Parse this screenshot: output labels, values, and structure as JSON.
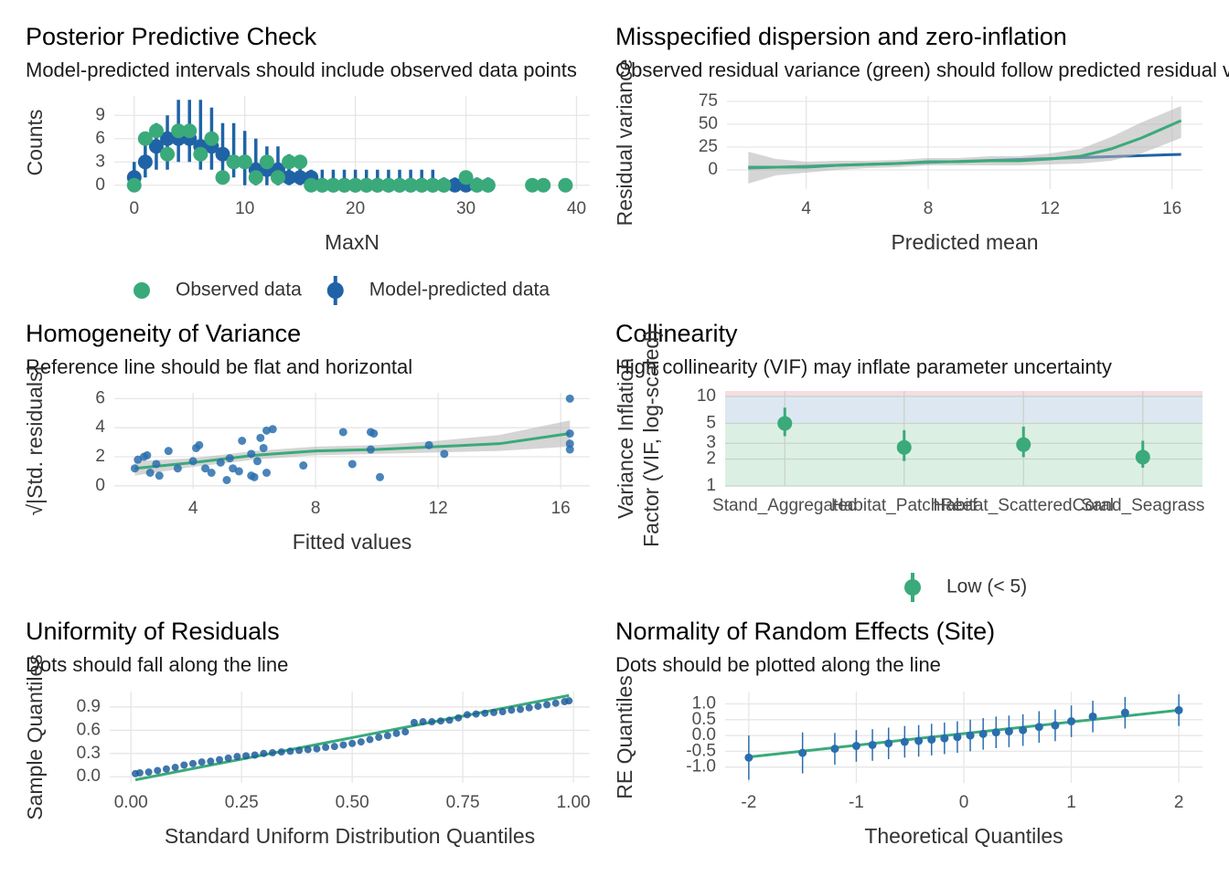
{
  "chart_data": [
    {
      "type": "pointrange",
      "title": "Posterior Predictive Check",
      "subtitle": "Model-predicted intervals should include observed data points",
      "xlabel": "MaxN",
      "ylabel": "Counts",
      "xlim": [
        -1.8,
        41.2
      ],
      "xticks": [
        0,
        10,
        20,
        30,
        40
      ],
      "ylim": [
        -0.5,
        11.5
      ],
      "yticks": [
        0,
        3,
        6,
        9
      ],
      "grid": true,
      "series": [
        {
          "name": "Observed data",
          "color": "#3aaa7a",
          "style": "points",
          "x": [
            0,
            1,
            2,
            3,
            4,
            5,
            6,
            7,
            8,
            9,
            10,
            11,
            12,
            13,
            14,
            15,
            16,
            17,
            18,
            19,
            20,
            21,
            22,
            23,
            24,
            25,
            26,
            27,
            28,
            30,
            31,
            32,
            36,
            37,
            39
          ],
          "values": [
            0,
            6,
            7,
            4,
            7,
            7,
            4,
            6,
            1,
            3,
            3,
            1,
            3,
            1,
            3,
            3,
            0,
            0,
            0,
            0,
            0,
            0,
            0,
            0,
            0,
            0,
            0,
            0,
            0,
            1,
            0,
            0,
            0,
            0,
            0
          ]
        },
        {
          "name": "Model-predicted data",
          "color": "#1f63a6",
          "style": "points",
          "x": [
            0,
            1,
            2,
            3,
            4,
            5,
            6,
            7,
            8,
            9,
            10,
            11,
            12,
            13,
            14,
            15,
            16,
            17,
            18,
            19,
            20,
            21,
            22,
            23,
            24,
            25,
            26,
            27,
            28,
            29,
            30,
            31,
            32
          ],
          "values": [
            1,
            3,
            5,
            6,
            6,
            6,
            5,
            5,
            4,
            3,
            3,
            2,
            2,
            2,
            1,
            1,
            1,
            0,
            0,
            0,
            0,
            0,
            0,
            0,
            0,
            0,
            0,
            0,
            0,
            0,
            0,
            0,
            0
          ],
          "lower": [
            0,
            1,
            2,
            2,
            3,
            3,
            2,
            2,
            1,
            1,
            0,
            0,
            0,
            0,
            0,
            0,
            0,
            0,
            0,
            0,
            0,
            0,
            0,
            0,
            0,
            0,
            0,
            0,
            0,
            0,
            0,
            0,
            0
          ],
          "upper": [
            3,
            6,
            8,
            9,
            11,
            11,
            11,
            10,
            8,
            8,
            7,
            6,
            5,
            5,
            4,
            3,
            2,
            2,
            2,
            2,
            2,
            2,
            2,
            2,
            2,
            2,
            2,
            2,
            1,
            1,
            1,
            1,
            1
          ]
        }
      ]
    },
    {
      "type": "line",
      "title": "Misspecified dispersion and zero-inflation",
      "subtitle": "Observed residual variance (green) should follow predicted residual variance (blue)",
      "xlabel": "Predicted mean",
      "ylabel": "Residual variance",
      "xlim": [
        1.4,
        17
      ],
      "xticks": [
        4,
        8,
        12,
        16
      ],
      "ylim": [
        -21,
        81
      ],
      "yticks": [
        0,
        25,
        50,
        75
      ],
      "grid": true,
      "series": [
        {
          "color": "#3aaa7a",
          "style": "line",
          "x": [
            2.1,
            3,
            4,
            5,
            6,
            7,
            8,
            9,
            10,
            11,
            12,
            13,
            14,
            15,
            16.3
          ],
          "values": [
            3,
            3,
            3,
            5,
            6,
            7,
            9,
            9,
            10,
            10,
            12,
            15,
            23,
            35,
            54
          ],
          "lower": [
            -15,
            -6,
            -3,
            0,
            2,
            3,
            5,
            5,
            5,
            5,
            6,
            7,
            10,
            18,
            35
          ],
          "upper": [
            20,
            12,
            9,
            10,
            10,
            11,
            13,
            13,
            15,
            15,
            18,
            23,
            36,
            52,
            70
          ]
        },
        {
          "color": "#1f63a6",
          "style": "line",
          "x": [
            2.1,
            16.3
          ],
          "values": [
            2,
            17
          ]
        }
      ]
    },
    {
      "type": "scatter",
      "title": "Homogeneity of Variance",
      "subtitle": "Reference line should be flat and horizontal",
      "xlabel": "Fitted values",
      "ylabel": "√|Std. residuals|",
      "xlim": [
        1.43,
        16.95
      ],
      "xticks": [
        4,
        8,
        12,
        16
      ],
      "ylim": [
        -0.2,
        6.4
      ],
      "yticks": [
        0,
        2,
        4,
        6
      ],
      "grid": true,
      "series": [
        {
          "color": "#2a6ead",
          "style": "points",
          "x": [
            2.1,
            2.2,
            2.4,
            2.5,
            2.6,
            2.8,
            3.2,
            2.9,
            3.5,
            4.0,
            4.1,
            4.2,
            4.4,
            4.6,
            4.9,
            5.1,
            5.2,
            5.6,
            5.3,
            5.5,
            5.9,
            5.9,
            6.1,
            6.2,
            6.3,
            6.4,
            6.6,
            6.4,
            6.0,
            7.6,
            8.9,
            9.2,
            9.8,
            9.9,
            9.8,
            10.1,
            11.7,
            12.2,
            16.3,
            16.3,
            16.3,
            16.3
          ],
          "values": [
            1.2,
            1.8,
            2.0,
            2.1,
            0.9,
            1.5,
            2.4,
            0.7,
            1.2,
            1.7,
            2.6,
            2.8,
            1.2,
            0.9,
            1.6,
            0.4,
            1.9,
            3.1,
            1.2,
            1.0,
            0.7,
            2.2,
            1.7,
            3.3,
            2.6,
            3.8,
            3.9,
            0.9,
            0.6,
            1.4,
            3.7,
            1.5,
            3.7,
            3.6,
            2.5,
            0.6,
            2.8,
            2.2,
            6.0,
            3.6,
            2.9,
            2.5
          ]
        },
        {
          "color": "#3aaa7a",
          "style": "line",
          "x": [
            2.1,
            4,
            6,
            8,
            10,
            12,
            14,
            16.3
          ],
          "values": [
            1.2,
            1.6,
            2.1,
            2.4,
            2.5,
            2.7,
            2.9,
            3.6
          ],
          "lower": [
            0.7,
            1.3,
            1.8,
            2.1,
            2.2,
            2.3,
            2.4,
            2.7
          ],
          "upper": [
            1.7,
            1.9,
            2.4,
            2.7,
            2.8,
            3.1,
            3.5,
            4.5
          ]
        }
      ]
    },
    {
      "type": "pointrange",
      "title": "Collinearity",
      "subtitle": "High collinearity (VIF) may inflate parameter uncertainty",
      "ylabel": [
        "Variance Inflation",
        "Factor (VIF, log-scaled)"
      ],
      "categories": [
        "Stand_Aggregated",
        "Habitat_PatchReef",
        "Habitat_ScatteredCoral",
        "Sand_Seagrass"
      ],
      "log_y": true,
      "ylim": [
        1,
        11.5
      ],
      "yticks": [
        1,
        2,
        3,
        5,
        10
      ],
      "grid": true,
      "bands": [
        {
          "from": 1,
          "to": 5,
          "color": "#dcefe3"
        },
        {
          "from": 5,
          "to": 10,
          "color": "#dce7f1"
        },
        {
          "from": 10,
          "to": 11.5,
          "color": "#f6dde2"
        }
      ],
      "series": [
        {
          "name": "Low (< 5)",
          "color": "#3aaa7a",
          "style": "points",
          "values": [
            5.0,
            2.7,
            2.9,
            2.1
          ],
          "lower": [
            3.6,
            1.9,
            2.1,
            1.6
          ],
          "upper": [
            7.5,
            4.2,
            4.6,
            3.2
          ]
        }
      ]
    },
    {
      "type": "scatter",
      "title": "Uniformity of Residuals",
      "subtitle": "Dots should fall along the line",
      "xlabel": "Standard Uniform Distribution Quantiles",
      "ylabel": "Sample Quantiles",
      "xlim": [
        -0.048,
        1.037
      ],
      "xticks": [
        {
          "value": 0,
          "label": "0.00"
        },
        0.25,
        {
          "value": 0.5,
          "label": "0.50"
        },
        0.75,
        {
          "value": 1,
          "label": "1.00"
        }
      ],
      "ylim": [
        -0.08,
        1.1
      ],
      "yticks": [
        {
          "value": 0,
          "label": "0.0"
        },
        0.3,
        0.6,
        0.9
      ],
      "grid": true,
      "series": [
        {
          "color": "#1f5e9c",
          "style": "points",
          "x": [
            0.01,
            0.02,
            0.04,
            0.06,
            0.08,
            0.1,
            0.12,
            0.14,
            0.16,
            0.18,
            0.2,
            0.22,
            0.24,
            0.26,
            0.28,
            0.3,
            0.32,
            0.34,
            0.36,
            0.38,
            0.4,
            0.42,
            0.44,
            0.46,
            0.48,
            0.5,
            0.52,
            0.54,
            0.56,
            0.58,
            0.6,
            0.62,
            0.64,
            0.66,
            0.68,
            0.7,
            0.72,
            0.74,
            0.76,
            0.78,
            0.8,
            0.82,
            0.84,
            0.86,
            0.88,
            0.9,
            0.92,
            0.94,
            0.96,
            0.98,
            0.99
          ],
          "values": [
            0.04,
            0.05,
            0.06,
            0.08,
            0.1,
            0.12,
            0.15,
            0.17,
            0.19,
            0.2,
            0.22,
            0.24,
            0.26,
            0.27,
            0.28,
            0.3,
            0.31,
            0.32,
            0.33,
            0.34,
            0.35,
            0.36,
            0.38,
            0.39,
            0.41,
            0.43,
            0.45,
            0.48,
            0.51,
            0.53,
            0.56,
            0.58,
            0.7,
            0.71,
            0.71,
            0.72,
            0.73,
            0.76,
            0.8,
            0.81,
            0.82,
            0.83,
            0.84,
            0.86,
            0.87,
            0.89,
            0.91,
            0.93,
            0.95,
            0.97,
            0.98
          ]
        },
        {
          "color": "#3aaa7a",
          "style": "line",
          "x": [
            0.01,
            0.99
          ],
          "values": [
            -0.04,
            1.05
          ]
        }
      ]
    },
    {
      "type": "pointrange",
      "title": "Normality of Random Effects (Site)",
      "subtitle": "Dots should be plotted along the line",
      "xlabel": "Theoretical Quantiles",
      "ylabel": "RE Quantiles",
      "xlim": [
        -2.22,
        2.22
      ],
      "xticks": [
        -2,
        -1,
        0,
        1,
        2
      ],
      "ylim": [
        -1.5,
        1.39
      ],
      "yticks": [
        {
          "value": 1,
          "label": "1.0"
        },
        0.5,
        {
          "value": 0,
          "label": "0.0"
        },
        -0.5,
        {
          "value": -1,
          "label": "-1.0"
        }
      ],
      "grid": true,
      "series": [
        {
          "color": "#2a6ead",
          "style": "points",
          "x": [
            -2,
            -1.5,
            -1.2,
            -1,
            -0.85,
            -0.7,
            -0.55,
            -0.42,
            -0.3,
            -0.18,
            -0.06,
            0.06,
            0.18,
            0.3,
            0.42,
            0.55,
            0.7,
            0.85,
            1,
            1.2,
            1.5,
            2
          ],
          "values": [
            -0.7,
            -0.55,
            -0.42,
            -0.33,
            -0.3,
            -0.25,
            -0.2,
            -0.17,
            -0.13,
            -0.09,
            -0.05,
            0,
            0.05,
            0.1,
            0.13,
            0.17,
            0.27,
            0.32,
            0.45,
            0.6,
            0.72,
            0.8
          ],
          "errors": [
            0.7,
            0.65,
            0.5,
            0.5,
            0.5,
            0.5,
            0.5,
            0.5,
            0.5,
            0.5,
            0.5,
            0.5,
            0.5,
            0.5,
            0.5,
            0.5,
            0.5,
            0.5,
            0.5,
            0.5,
            0.5,
            0.5
          ]
        },
        {
          "color": "#3aaa7a",
          "style": "line",
          "x": [
            -2,
            2
          ],
          "values": [
            -0.68,
            0.8
          ]
        }
      ]
    }
  ]
}
